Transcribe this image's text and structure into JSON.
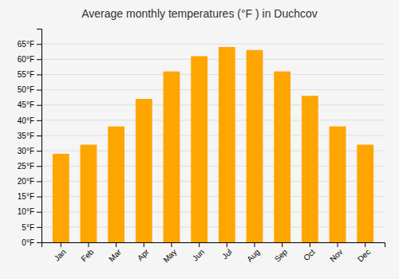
{
  "chart_data": {
    "type": "bar",
    "title": "Average monthly temperatures (°F ) in Duchcov",
    "categories": [
      "Jan",
      "Feb",
      "Mar",
      "Apr",
      "May",
      "Jun",
      "Jul",
      "Aug",
      "Sep",
      "Oct",
      "Nov",
      "Dec"
    ],
    "values": [
      29,
      32,
      38,
      47,
      56,
      61,
      64,
      63,
      56,
      48,
      38,
      32
    ],
    "color": "#FFA500",
    "ylim": [
      0,
      70
    ],
    "yticks": [
      {
        "value": 0,
        "label": "0°F"
      },
      {
        "value": 5,
        "label": "5°F"
      },
      {
        "value": 10,
        "label": "10°F"
      },
      {
        "value": 15,
        "label": "15°F"
      },
      {
        "value": 20,
        "label": "20°F"
      },
      {
        "value": 25,
        "label": "25°F"
      },
      {
        "value": 30,
        "label": "30°F"
      },
      {
        "value": 35,
        "label": "35°F"
      },
      {
        "value": 40,
        "label": "40°F"
      },
      {
        "value": 45,
        "label": "45°F"
      },
      {
        "value": 50,
        "label": "50°F"
      },
      {
        "value": 55,
        "label": "55°F"
      },
      {
        "value": 60,
        "label": "60°F"
      },
      {
        "value": 65,
        "label": "65°F"
      }
    ],
    "grid": true
  }
}
